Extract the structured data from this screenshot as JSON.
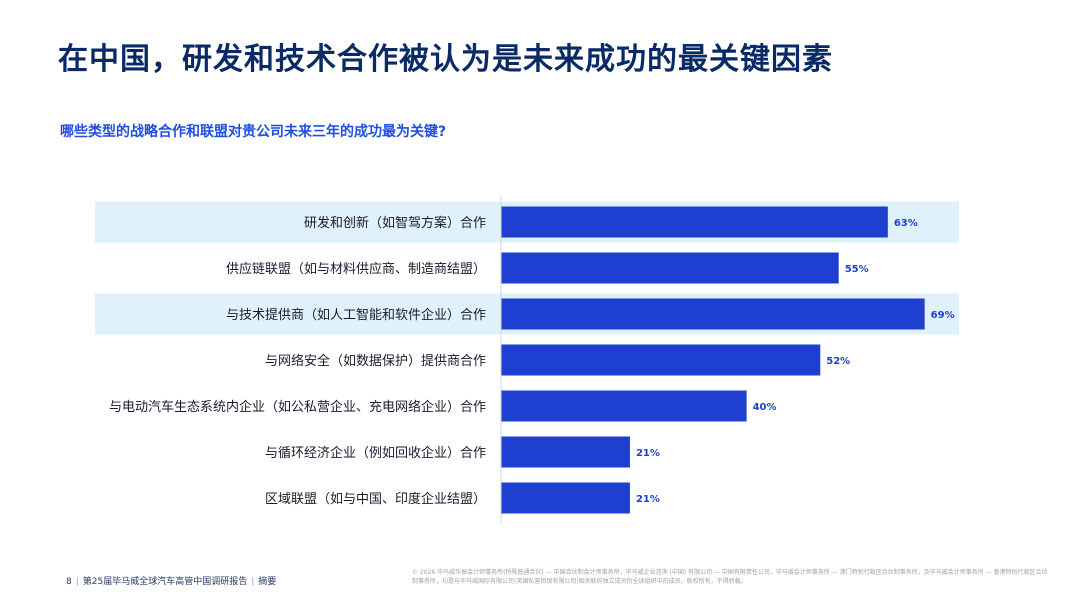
{
  "page": {
    "title": "在中国，研发和技术合作被认为是未来成功的最关键因素",
    "question": "哪些类型的战略合作和联盟对贵公司未来三年的成功最为关键?"
  },
  "chart_data": {
    "type": "bar",
    "orientation": "horizontal",
    "categories": [
      "研发和创新（如智驾方案）合作",
      "供应链联盟（如与材料供应商、制造商结盟）",
      "与技术提供商（如人工智能和软件企业）合作",
      "与网络安全（如数据保护）提供商合作",
      "与电动汽车生态系统内企业（如公私营企业、充电网络企业）合作",
      "与循环经济企业（例如回收企业）合作",
      "区域联盟（如与中国、印度企业结盟）"
    ],
    "values": [
      63,
      55,
      69,
      52,
      40,
      21,
      21
    ],
    "value_labels": [
      "63%",
      "55%",
      "69%",
      "52%",
      "40%",
      "21%",
      "21%"
    ],
    "highlighted_rows": [
      0,
      2
    ],
    "xlim": [
      0,
      100
    ],
    "grid": false,
    "legend": "none",
    "colors": {
      "bar": "#1f3fd0",
      "highlight_band": "#dff1fb",
      "value_label": "#1f3fd0"
    }
  },
  "footer": {
    "page_number": "8",
    "report_name": "第25届毕马威全球汽车高管中国调研报告",
    "section": "摘要",
    "disclaimer": "© 2026 毕马威华振会计师事务所(特殊普通合伙) — 中国合伙制会计师事务所，毕马威企业咨询 (中国) 有限公司 — 中国有限责任公司，毕马威会计师事务所 — 澳门特别行政区合伙制事务所，及毕马威会计师事务所 — 香港特别行政区合伙制事务所，均是与毕马威国际有限公司(英国私营担保有限公司)相关联的独立成员所全球组织中的成员。版权所有，不得转载。"
  }
}
